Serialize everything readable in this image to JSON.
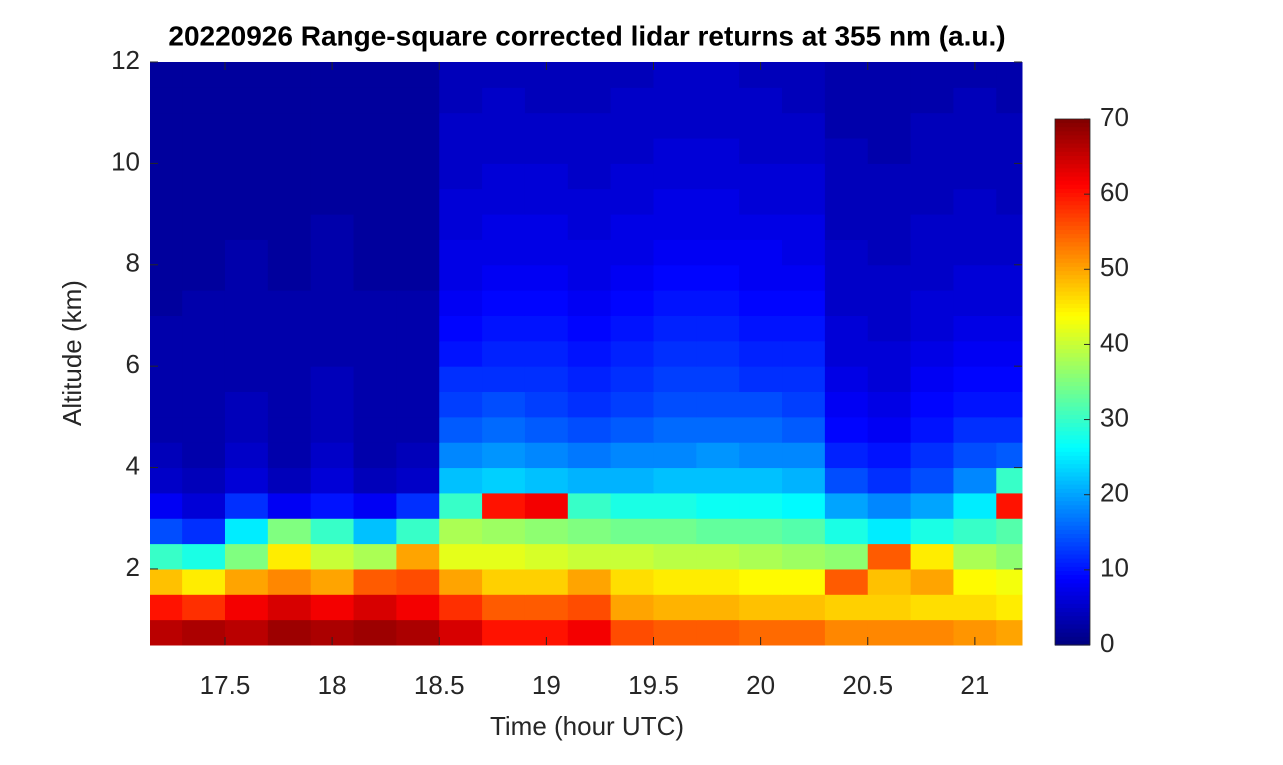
{
  "chart_data": {
    "type": "heatmap",
    "title": "20220926  Range-square corrected lidar returns at 355 nm (a.u.)",
    "x_label": "Time (hour UTC)",
    "y_label": "Altitude (km)",
    "xlim": [
      17.15,
      21.22
    ],
    "ylim": [
      0.5,
      12
    ],
    "xticks": [
      17.5,
      18,
      18.5,
      19,
      19.5,
      20,
      20.5,
      21
    ],
    "yticks": [
      2,
      4,
      6,
      8,
      10,
      12
    ],
    "colormap": "jet",
    "clim": [
      0,
      70
    ],
    "cticks": [
      0,
      10,
      20,
      30,
      40,
      50,
      60,
      70
    ],
    "x": [
      17.2,
      17.4,
      17.6,
      17.8,
      18.0,
      18.2,
      18.4,
      18.6,
      18.8,
      19.0,
      19.2,
      19.4,
      19.6,
      19.8,
      20.0,
      20.2,
      20.4,
      20.6,
      20.8,
      21.0,
      21.2
    ],
    "y": [
      0.75,
      1.25,
      1.75,
      2.25,
      2.75,
      3.25,
      3.75,
      4.25,
      4.75,
      5.25,
      5.75,
      6.25,
      6.75,
      7.25,
      7.75,
      8.25,
      8.75,
      9.25,
      9.75,
      10.25,
      10.75,
      11.25,
      11.75
    ],
    "z": [
      [
        66,
        67,
        66,
        68,
        67,
        68,
        67,
        64,
        60,
        60,
        62,
        56,
        55,
        55,
        54,
        54,
        52,
        52,
        52,
        51,
        50
      ],
      [
        60,
        58,
        62,
        64,
        62,
        64,
        62,
        58,
        55,
        55,
        56,
        50,
        49,
        49,
        48,
        48,
        47,
        47,
        46,
        46,
        45
      ],
      [
        48,
        45,
        50,
        52,
        50,
        55,
        56,
        50,
        47,
        47,
        50,
        46,
        45,
        45,
        44,
        44,
        55,
        48,
        50,
        44,
        43
      ],
      [
        30,
        28,
        35,
        45,
        40,
        38,
        50,
        42,
        42,
        41,
        40,
        40,
        39,
        39,
        38,
        37,
        36,
        55,
        45,
        38,
        36
      ],
      [
        14,
        12,
        25,
        35,
        30,
        22,
        30,
        38,
        37,
        36,
        35,
        34,
        34,
        33,
        33,
        32,
        28,
        25,
        28,
        30,
        32
      ],
      [
        8,
        6,
        12,
        8,
        10,
        8,
        12,
        30,
        60,
        62,
        30,
        28,
        28,
        27,
        27,
        26,
        20,
        18,
        20,
        25,
        60
      ],
      [
        5,
        4,
        6,
        4,
        6,
        4,
        5,
        22,
        23,
        22,
        21,
        21,
        22,
        22,
        22,
        21,
        14,
        12,
        14,
        18,
        30
      ],
      [
        4,
        3,
        5,
        3,
        5,
        3,
        4,
        18,
        19,
        18,
        17,
        18,
        18,
        19,
        18,
        18,
        11,
        10,
        12,
        14,
        15
      ],
      [
        3,
        3,
        4,
        3,
        4,
        3,
        3,
        15,
        16,
        15,
        14,
        15,
        16,
        16,
        16,
        15,
        9,
        8,
        10,
        12,
        12
      ],
      [
        3,
        3,
        4,
        3,
        4,
        3,
        3,
        13,
        14,
        13,
        12,
        13,
        14,
        14,
        14,
        13,
        8,
        7,
        9,
        10,
        10
      ],
      [
        3,
        3,
        3,
        3,
        4,
        3,
        3,
        12,
        12,
        12,
        11,
        12,
        13,
        13,
        12,
        12,
        7,
        6,
        8,
        9,
        9
      ],
      [
        3,
        3,
        3,
        3,
        3,
        3,
        3,
        10,
        11,
        11,
        10,
        11,
        12,
        12,
        11,
        11,
        6,
        6,
        7,
        8,
        8
      ],
      [
        3,
        3,
        3,
        3,
        3,
        3,
        3,
        9,
        10,
        10,
        9,
        10,
        11,
        11,
        10,
        10,
        6,
        5,
        6,
        7,
        7
      ],
      [
        2,
        3,
        3,
        3,
        3,
        3,
        3,
        8,
        9,
        9,
        8,
        9,
        10,
        10,
        9,
        9,
        5,
        5,
        6,
        6,
        6
      ],
      [
        2,
        2,
        3,
        2,
        3,
        2,
        2,
        7,
        8,
        8,
        7,
        8,
        9,
        9,
        8,
        8,
        5,
        5,
        5,
        6,
        6
      ],
      [
        2,
        2,
        3,
        2,
        3,
        2,
        2,
        7,
        7,
        7,
        7,
        7,
        8,
        8,
        8,
        7,
        5,
        4,
        5,
        5,
        5
      ],
      [
        2,
        2,
        2,
        2,
        3,
        2,
        2,
        6,
        7,
        7,
        6,
        7,
        7,
        7,
        7,
        7,
        4,
        4,
        5,
        5,
        5
      ],
      [
        2,
        2,
        2,
        2,
        2,
        2,
        2,
        6,
        6,
        6,
        6,
        6,
        7,
        7,
        6,
        6,
        4,
        4,
        4,
        5,
        4
      ],
      [
        2,
        2,
        2,
        2,
        2,
        2,
        2,
        5,
        6,
        6,
        5,
        6,
        6,
        6,
        6,
        6,
        4,
        4,
        4,
        4,
        4
      ],
      [
        2,
        2,
        2,
        2,
        2,
        2,
        2,
        5,
        5,
        5,
        5,
        5,
        6,
        6,
        5,
        5,
        4,
        3,
        4,
        4,
        4
      ],
      [
        2,
        2,
        2,
        2,
        2,
        2,
        2,
        5,
        5,
        5,
        5,
        5,
        5,
        5,
        5,
        5,
        3,
        3,
        4,
        4,
        4
      ],
      [
        2,
        2,
        2,
        2,
        2,
        2,
        2,
        4,
        5,
        4,
        4,
        5,
        5,
        5,
        5,
        4,
        3,
        3,
        3,
        4,
        3
      ],
      [
        2,
        2,
        2,
        2,
        2,
        2,
        2,
        4,
        4,
        4,
        4,
        4,
        5,
        5,
        4,
        4,
        3,
        3,
        3,
        3,
        3
      ]
    ]
  }
}
